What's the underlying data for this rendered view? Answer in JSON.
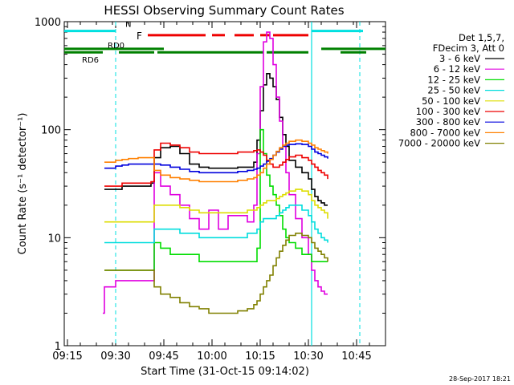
{
  "chart_data": {
    "type": "line",
    "title": "HESSI Observing Summary Count Rates",
    "xlabel": "Start Time (31-Oct-15 09:14:02)",
    "ylabel": "Count Rate (s⁻¹ detector⁻¹)",
    "xticks": [
      "09:15",
      "09:30",
      "09:45",
      "10:00",
      "10:15",
      "10:30",
      "10:45"
    ],
    "xlim_minutes": [
      0,
      100
    ],
    "xtick_minutes": [
      1,
      16,
      31,
      46,
      61,
      76,
      91
    ],
    "yscale": "log",
    "ylim": [
      1,
      1000
    ],
    "yticks": [
      "1",
      "10",
      "100",
      "1000"
    ],
    "legend_header": [
      "Det 1,5,7,",
      "FDecim 3, Att 0"
    ],
    "timestamp": "28-Sep-2017 18:21",
    "x_minutes": [
      12,
      12.5,
      16,
      18,
      20,
      23,
      27,
      28,
      30,
      33,
      36,
      39,
      42,
      45,
      48,
      51,
      54,
      57,
      59,
      60,
      61,
      62,
      63,
      64,
      65,
      66,
      67,
      68,
      69,
      70,
      72,
      74,
      76,
      77,
      78,
      79,
      80,
      81,
      82
    ],
    "series": [
      {
        "name": "3 - 6 keV",
        "color": "#000000",
        "values": [
          null,
          28,
          28,
          30,
          30,
          30,
          32,
          55,
          68,
          70,
          60,
          48,
          45,
          44,
          44,
          44,
          45,
          45,
          50,
          80,
          150,
          260,
          330,
          300,
          250,
          190,
          130,
          90,
          70,
          52,
          45,
          40,
          35,
          28,
          24,
          22,
          21,
          20,
          20
        ]
      },
      {
        "name": "6 - 12 keV",
        "color": "#e000e0",
        "values": [
          2,
          3.5,
          4,
          4,
          4,
          4,
          4,
          40,
          30,
          25,
          20,
          15,
          12,
          18,
          12,
          16,
          16,
          14,
          20,
          60,
          250,
          650,
          800,
          700,
          400,
          200,
          120,
          70,
          40,
          25,
          15,
          10,
          7,
          5,
          4,
          3.5,
          3.2,
          3,
          3
        ]
      },
      {
        "name": "12 - 25 keV",
        "color": "#00dd00",
        "values": [
          null,
          5,
          5,
          5,
          5,
          5,
          5,
          9,
          8,
          7,
          7,
          7,
          6,
          6,
          6,
          6,
          6,
          6,
          6,
          8,
          100,
          60,
          38,
          30,
          25,
          20,
          16,
          12,
          10,
          9,
          8,
          7,
          7,
          6,
          6,
          6,
          6,
          6,
          6
        ]
      },
      {
        "name": "25 - 50 keV",
        "color": "#00dddd",
        "values": [
          null,
          9,
          9,
          9,
          9,
          9,
          9,
          12,
          12,
          12,
          11,
          11,
          10,
          10,
          10,
          10,
          10,
          11,
          11,
          12,
          14,
          15,
          15,
          15,
          15,
          16,
          17,
          18,
          19,
          20,
          20,
          18,
          16,
          14,
          12,
          11,
          10,
          9.5,
          9
        ]
      },
      {
        "name": "50 - 100 keV",
        "color": "#dddd00",
        "values": [
          null,
          14,
          14,
          14,
          14,
          14,
          14,
          20,
          20,
          20,
          19,
          18,
          17,
          17,
          17,
          17,
          17,
          18,
          18,
          19,
          20,
          21,
          22,
          22,
          22,
          23,
          24,
          25,
          26,
          27,
          28,
          27,
          25,
          22,
          20,
          19,
          18,
          17,
          15
        ]
      },
      {
        "name": "100 - 300 keV",
        "color": "#ee0000",
        "values": [
          null,
          30,
          30,
          32,
          32,
          32,
          33,
          65,
          75,
          72,
          68,
          62,
          60,
          60,
          60,
          60,
          62,
          62,
          64,
          65,
          62,
          58,
          52,
          48,
          45,
          45,
          47,
          50,
          53,
          56,
          58,
          55,
          52,
          48,
          45,
          42,
          40,
          38,
          35
        ]
      },
      {
        "name": "300 - 800 keV",
        "color": "#0000dd",
        "values": [
          null,
          44,
          46,
          47,
          48,
          48,
          48,
          48,
          47,
          45,
          43,
          41,
          40,
          40,
          40,
          40,
          41,
          42,
          43,
          44,
          46,
          48,
          51,
          54,
          58,
          62,
          66,
          70,
          72,
          73,
          74,
          73,
          70,
          66,
          62,
          60,
          58,
          56,
          54
        ]
      },
      {
        "name": "800 - 7000 keV",
        "color": "#ff8000",
        "values": [
          null,
          50,
          52,
          53,
          54,
          55,
          55,
          42,
          38,
          36,
          35,
          34,
          33,
          33,
          33,
          33,
          34,
          35,
          36,
          38,
          40,
          44,
          48,
          53,
          58,
          63,
          68,
          72,
          75,
          78,
          80,
          78,
          75,
          72,
          68,
          66,
          64,
          62,
          60
        ]
      },
      {
        "name": "7000 - 20000 keV",
        "color": "#808000",
        "values": [
          null,
          5,
          5,
          5,
          5,
          5,
          5,
          3.5,
          3,
          2.8,
          2.5,
          2.3,
          2.2,
          2,
          2,
          2,
          2.1,
          2.2,
          2.4,
          2.6,
          3,
          3.5,
          4,
          4.5,
          5.5,
          6.5,
          7.5,
          8.5,
          9.5,
          10.5,
          11,
          10.5,
          10,
          9,
          8,
          7.5,
          7,
          6.5,
          6
        ]
      }
    ],
    "annotations": {
      "night_label": "N",
      "flare_label": "F",
      "rd0_label": "RD0",
      "rd6_label": "RD6",
      "night_color": "#00e0e0",
      "flare_color": "#ee0000",
      "rd_color": "#008000",
      "night_solid_minutes": [
        [
          0,
          16
        ],
        [
          77,
          93
        ]
      ],
      "night_dashed_minutes": [
        16,
        92
      ],
      "night_solid_vertical_minutes": [
        77
      ],
      "flare_segments_minutes": [
        [
          26,
          44
        ],
        [
          46,
          50
        ],
        [
          53,
          59
        ],
        [
          61,
          64
        ],
        [
          65,
          76
        ]
      ],
      "rd0_segments_minutes": [
        [
          0,
          31
        ],
        [
          80,
          100
        ]
      ],
      "rd6_segments_minutes": [
        [
          0,
          12
        ],
        [
          17,
          28
        ],
        [
          29,
          62
        ],
        [
          63,
          76
        ],
        [
          86,
          94
        ]
      ],
      "rd0_value": 560,
      "rd6_value": 520,
      "flare_value": 750,
      "night_value": 820
    }
  }
}
